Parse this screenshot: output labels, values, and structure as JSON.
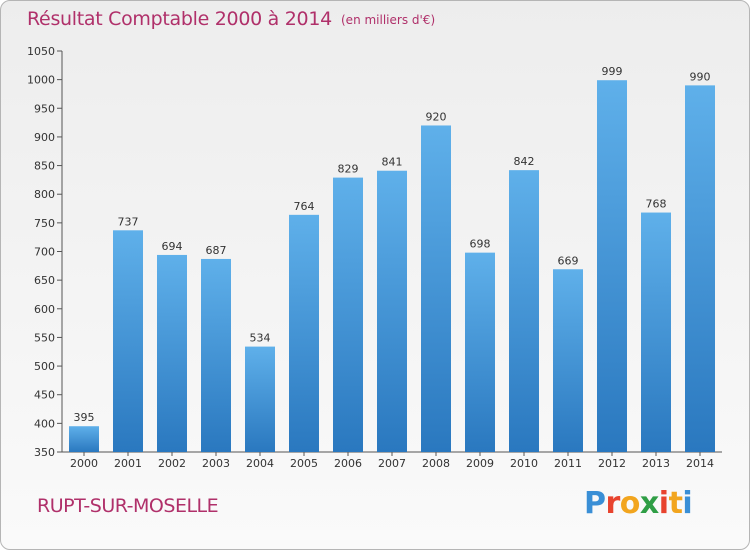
{
  "header": {
    "title": "Résultat Comptable 2000 à 2014",
    "subtitle": "(en milliers d'€)"
  },
  "footer": {
    "commune": "RUPT-SUR-MOSELLE",
    "logo_letters": [
      "P",
      "r",
      "o",
      "x",
      "i",
      "t",
      "i"
    ],
    "logo_colors": [
      "#3a8fd6",
      "#e8432e",
      "#f2a51e",
      "#2f9e45",
      "#e8432e",
      "#f2a51e",
      "#3a8fd6"
    ]
  },
  "colors": {
    "bar_top": "#5fb0ea",
    "bar_bottom": "#2a78bf",
    "axis": "#555555",
    "grid": "#d9d9d9",
    "text": "#b0306a"
  },
  "chart_data": {
    "type": "bar",
    "title": "Résultat Comptable 2000 à 2014",
    "subtitle": "(en milliers d'€)",
    "categories": [
      "2000",
      "2001",
      "2002",
      "2003",
      "2004",
      "2005",
      "2006",
      "2007",
      "2008",
      "2009",
      "2010",
      "2011",
      "2012",
      "2013",
      "2014"
    ],
    "values": [
      395,
      737,
      694,
      687,
      534,
      764,
      829,
      841,
      920,
      698,
      842,
      669,
      999,
      768,
      990
    ],
    "ylim": [
      350,
      1050
    ],
    "yticks": [
      350,
      400,
      450,
      500,
      550,
      600,
      650,
      700,
      750,
      800,
      850,
      900,
      950,
      1000,
      1050
    ],
    "grid": false,
    "legend": "none"
  }
}
